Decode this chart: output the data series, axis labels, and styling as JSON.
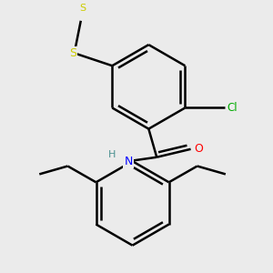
{
  "background_color": "#ebebeb",
  "atom_colors": {
    "C": "#000000",
    "H": "#4a9090",
    "N": "#0000ff",
    "O": "#ff0000",
    "S": "#cccc00",
    "Cl": "#00aa00"
  },
  "bond_color": "#000000",
  "bond_width": 1.8,
  "figsize": [
    3.0,
    3.0
  ],
  "dpi": 100
}
